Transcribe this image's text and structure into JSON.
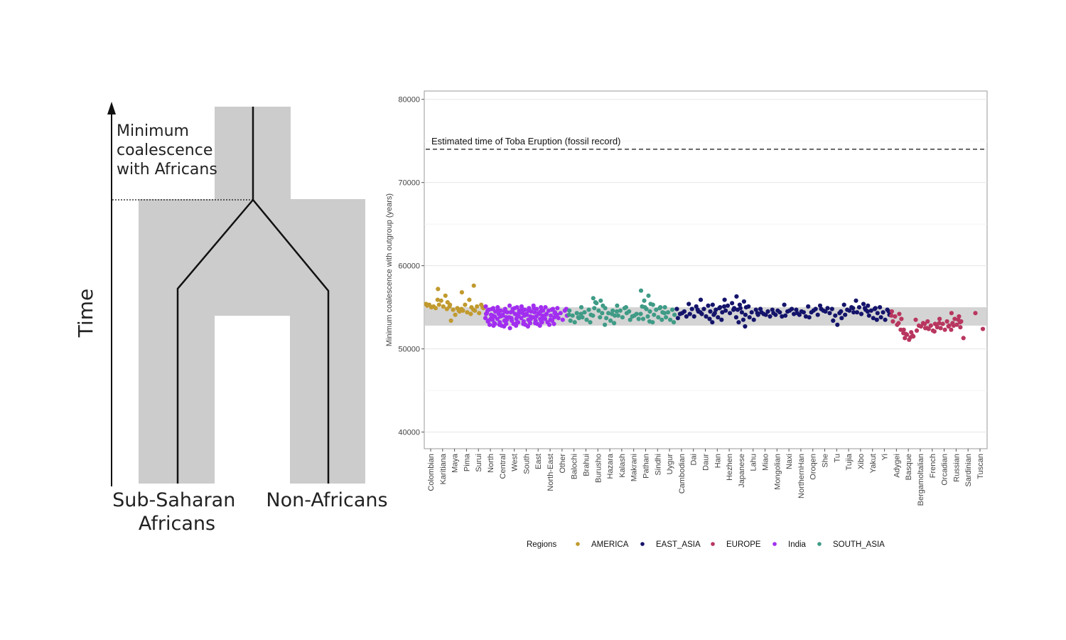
{
  "diagram": {
    "time_label": "Time",
    "min_coalescence_lines": [
      "Minimum",
      "coalescence",
      "with Africans"
    ],
    "left_group_lines": [
      "Sub-Saharan",
      "Africans"
    ],
    "right_group": "Non-Africans"
  },
  "chart_data": {
    "type": "scatter",
    "title": "",
    "xlabel": "",
    "ylabel": "Minimum coalescence with outgroup (years)",
    "ylim": [
      38000,
      81000
    ],
    "yticks": [
      40000,
      50000,
      60000,
      70000,
      80000
    ],
    "grid": true,
    "band": [
      52800,
      55000
    ],
    "reference_line": {
      "y": 74000,
      "label": "Estimated time of Toba Eruption (fossil record)"
    },
    "legend": {
      "title": "Regions",
      "placement": "bottom",
      "entries": [
        {
          "name": "AMERICA",
          "color": "#c19a2e"
        },
        {
          "name": "EAST_ASIA",
          "color": "#14146b"
        },
        {
          "name": "EUROPE",
          "color": "#b8365f"
        },
        {
          "name": "India",
          "color": "#a22ef0"
        },
        {
          "name": "SOUTH_ASIA",
          "color": "#3f9b86"
        }
      ]
    },
    "populations": [
      {
        "name": "Colombian",
        "region": "AMERICA",
        "values": [
          55400,
          55100,
          55300,
          54900,
          55200,
          55000
        ]
      },
      {
        "name": "Karitiana",
        "region": "AMERICA",
        "values": [
          57200,
          56400,
          55800,
          55600,
          55300,
          55100,
          54800,
          55900
        ]
      },
      {
        "name": "Maya",
        "region": "AMERICA",
        "values": [
          55300,
          54900,
          54700,
          54500,
          53400,
          54100,
          54600,
          55100
        ]
      },
      {
        "name": "Pima",
        "region": "AMERICA",
        "values": [
          56800,
          55900,
          55300,
          55000,
          54600,
          54400,
          54200,
          54800
        ]
      },
      {
        "name": "Surui",
        "region": "AMERICA",
        "values": [
          57600,
          55300,
          55100,
          54900,
          54600,
          54300,
          55000,
          54700
        ]
      },
      {
        "name": "North",
        "region": "India",
        "values": [
          55100,
          54900,
          54700,
          54500,
          54300,
          54100,
          53900,
          53700,
          53500,
          53300,
          53100,
          52900,
          54800,
          54200,
          53600,
          53000,
          54600,
          54000,
          53400,
          52800
        ]
      },
      {
        "name": "Central",
        "region": "India",
        "values": [
          55000,
          54800,
          54600,
          54400,
          54200,
          54000,
          53800,
          53600,
          53400,
          53200,
          53000,
          52800,
          52700,
          54700,
          54100,
          53500,
          52900,
          54500,
          53900,
          53300
        ]
      },
      {
        "name": "West",
        "region": "India",
        "values": [
          55200,
          55000,
          54800,
          54600,
          54400,
          54200,
          54000,
          53800,
          53600,
          53400,
          53200,
          53000,
          52800,
          52500,
          54900,
          54300,
          53700,
          53100,
          54500,
          53900
        ]
      },
      {
        "name": "South",
        "region": "India",
        "values": [
          55100,
          54900,
          54700,
          54500,
          54300,
          54100,
          53900,
          53700,
          53500,
          53300,
          53100,
          52900,
          52700,
          54800,
          54200,
          53600,
          53000,
          54600,
          54000,
          53400
        ]
      },
      {
        "name": "East",
        "region": "India",
        "values": [
          55200,
          55000,
          54800,
          54600,
          54400,
          54200,
          54000,
          53800,
          53600,
          53400,
          53200,
          53000,
          52800,
          54900,
          54300,
          53700,
          53100,
          54500,
          53900,
          53300
        ]
      },
      {
        "name": "North-East",
        "region": "India",
        "values": [
          55000,
          54800,
          54600,
          54400,
          54200,
          54000,
          53800,
          53600,
          53400,
          53200,
          53000,
          52900,
          54700,
          54100,
          53500,
          54300
        ]
      },
      {
        "name": "Other",
        "region": "India",
        "values": [
          54900,
          54600,
          54300,
          54000,
          53700,
          53500,
          54800,
          54100
        ]
      },
      {
        "name": "Balochi",
        "region": "SOUTH_ASIA",
        "values": [
          54600,
          54300,
          54000,
          53700,
          53400,
          53200,
          53800,
          54100
        ]
      },
      {
        "name": "Brahui",
        "region": "SOUTH_ASIA",
        "values": [
          55000,
          54700,
          54400,
          54100,
          53800,
          53500,
          53200,
          54200
        ]
      },
      {
        "name": "Burusho",
        "region": "SOUTH_ASIA",
        "values": [
          56100,
          55800,
          55500,
          55200,
          54900,
          54600,
          54300,
          54000,
          53800,
          55600
        ]
      },
      {
        "name": "Hazara",
        "region": "SOUTH_ASIA",
        "values": [
          54900,
          54600,
          54300,
          54000,
          53700,
          53400,
          53100,
          52900,
          54200
        ]
      },
      {
        "name": "Kalash",
        "region": "SOUTH_ASIA",
        "values": [
          55200,
          54900,
          54600,
          54300,
          54000,
          53800,
          55000,
          54500
        ]
      },
      {
        "name": "Makrani",
        "region": "SOUTH_ASIA",
        "values": [
          54500,
          54200,
          53900,
          53600,
          53500,
          54000
        ]
      },
      {
        "name": "Pathan",
        "region": "SOUTH_ASIA",
        "values": [
          57000,
          56400,
          55800,
          55400,
          55100,
          54800,
          54500,
          54200,
          53900,
          53600,
          53300,
          55000
        ]
      },
      {
        "name": "Sindhi",
        "region": "SOUTH_ASIA",
        "values": [
          55300,
          55000,
          54700,
          54400,
          54100,
          53800,
          53500,
          53200,
          54900
        ]
      },
      {
        "name": "Uygur",
        "region": "SOUTH_ASIA",
        "values": [
          55000,
          54700,
          54400,
          54100,
          53800,
          53500,
          53200,
          54300
        ]
      },
      {
        "name": "Cambodian",
        "region": "EAST_ASIA",
        "values": [
          54800,
          54500,
          54200,
          53900,
          53700,
          54300
        ]
      },
      {
        "name": "Dai",
        "region": "EAST_ASIA",
        "values": [
          55400,
          55100,
          54800,
          54500,
          54200,
          53900,
          54700
        ]
      },
      {
        "name": "Daur",
        "region": "EAST_ASIA",
        "values": [
          55900,
          55200,
          54800,
          54500,
          54200,
          53900,
          53600,
          54400
        ]
      },
      {
        "name": "Han",
        "region": "EAST_ASIA",
        "values": [
          55300,
          55000,
          54700,
          54400,
          54100,
          53800,
          53500,
          53200,
          54900,
          54300
        ]
      },
      {
        "name": "Hezhen",
        "region": "EAST_ASIA",
        "values": [
          55900,
          55500,
          55200,
          54900,
          54600,
          54300,
          54700,
          55100
        ]
      },
      {
        "name": "Japanese",
        "region": "EAST_ASIA",
        "values": [
          56300,
          55700,
          55300,
          55000,
          54700,
          54400,
          54100,
          53800,
          53500,
          53200,
          52700,
          54900
        ]
      },
      {
        "name": "Lahu",
        "region": "EAST_ASIA",
        "values": [
          55100,
          54700,
          54400,
          54100,
          53800,
          53500,
          54300
        ]
      },
      {
        "name": "Miao",
        "region": "EAST_ASIA",
        "values": [
          54800,
          54500,
          54200,
          53900,
          54400,
          54100
        ]
      },
      {
        "name": "Mongolian",
        "region": "EAST_ASIA",
        "values": [
          54700,
          54400,
          54100,
          53900,
          54300,
          54600
        ]
      },
      {
        "name": "Naxi",
        "region": "EAST_ASIA",
        "values": [
          55300,
          54800,
          54500,
          54200,
          54000,
          54600
        ]
      },
      {
        "name": "NorthernHan",
        "region": "EAST_ASIA",
        "values": [
          54700,
          54400,
          54100,
          53900,
          54300,
          54500
        ]
      },
      {
        "name": "Oroqen",
        "region": "EAST_ASIA",
        "values": [
          55100,
          54800,
          54400,
          54100,
          53800,
          54600
        ]
      },
      {
        "name": "She",
        "region": "EAST_ASIA",
        "values": [
          55200,
          54900,
          54600,
          54300,
          54800,
          54500
        ]
      },
      {
        "name": "Tu",
        "region": "EAST_ASIA",
        "values": [
          54800,
          54300,
          54000,
          53700,
          53400,
          52900,
          54500
        ]
      },
      {
        "name": "Tujia",
        "region": "EAST_ASIA",
        "values": [
          55300,
          55000,
          54700,
          54400,
          54100,
          54600,
          54900
        ]
      },
      {
        "name": "Xibo",
        "region": "EAST_ASIA",
        "values": [
          55800,
          55400,
          55000,
          54700,
          54400,
          54200,
          54900
        ]
      },
      {
        "name": "Yakut",
        "region": "EAST_ASIA",
        "values": [
          55200,
          54900,
          54600,
          54300,
          54000,
          53700,
          53500,
          54500,
          54800
        ]
      },
      {
        "name": "Yi",
        "region": "EAST_ASIA",
        "values": [
          55000,
          54700,
          54400,
          54100,
          53800,
          53500,
          54500
        ]
      },
      {
        "name": "Adygei",
        "region": "EUROPE",
        "values": [
          54500,
          54200,
          53900,
          53600,
          53300,
          52900,
          52300,
          54000,
          53100
        ]
      },
      {
        "name": "Basque",
        "region": "EUROPE",
        "values": [
          52300,
          52000,
          51700,
          51500,
          51300,
          51100,
          51600,
          51900,
          51400,
          51800
        ]
      },
      {
        "name": "Bergamoltalian",
        "region": "EUROPE",
        "values": [
          53500,
          53100,
          52800,
          52500,
          52200,
          52700,
          53000
        ]
      },
      {
        "name": "French",
        "region": "EUROPE",
        "values": [
          53300,
          53000,
          52800,
          52600,
          52400,
          52200,
          52900,
          52500,
          52100
        ]
      },
      {
        "name": "Orcadian",
        "region": "EUROPE",
        "values": [
          53600,
          53300,
          53000,
          52800,
          52500,
          52300,
          52700,
          53100
        ]
      },
      {
        "name": "Russian",
        "region": "EUROPE",
        "values": [
          54300,
          53900,
          53600,
          53300,
          53100,
          52900,
          52600,
          52300,
          53500,
          52800,
          53200
        ]
      },
      {
        "name": "Sardinian",
        "region": "EUROPE",
        "values": [
          51300
        ]
      },
      {
        "name": "Tuscan",
        "region": "EUROPE",
        "values": [
          54300,
          52400
        ]
      }
    ]
  }
}
